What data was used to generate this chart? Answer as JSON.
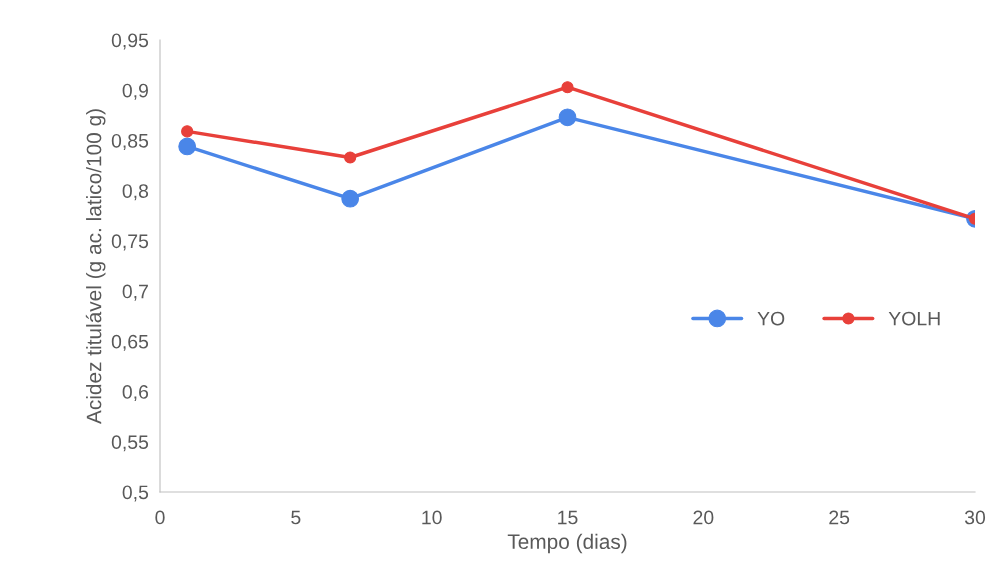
{
  "chart_data": {
    "type": "line",
    "xlabel": "Tempo (dias)",
    "ylabel": "Acidez titulável (g ac. latico/100 g)",
    "x": [
      1,
      7,
      15,
      30
    ],
    "series": [
      {
        "name": "YO",
        "color": "#4a86e8",
        "values": [
          0.844,
          0.792,
          0.873,
          0.772
        ]
      },
      {
        "name": "YOLH",
        "color": "#e8403a",
        "values": [
          0.859,
          0.833,
          0.903,
          0.772
        ]
      }
    ],
    "xlim": [
      0,
      30
    ],
    "xticks": [
      0,
      5,
      10,
      15,
      20,
      25,
      30
    ],
    "ylim": [
      0.5,
      0.95
    ],
    "yticks": [
      {
        "value": 0.5,
        "label": "0,5"
      },
      {
        "value": 0.55,
        "label": "0,55"
      },
      {
        "value": 0.6,
        "label": "0,6"
      },
      {
        "value": 0.65,
        "label": "0,65"
      },
      {
        "value": 0.7,
        "label": "0,7"
      },
      {
        "value": 0.75,
        "label": "0,75"
      },
      {
        "value": 0.8,
        "label": "0,8"
      },
      {
        "value": 0.85,
        "label": "0,85"
      },
      {
        "value": 0.9,
        "label": "0,9"
      },
      {
        "value": 0.95,
        "label": "0,95"
      }
    ],
    "marker": "circle",
    "line_style": "solid",
    "grid": false,
    "legend": "right"
  }
}
